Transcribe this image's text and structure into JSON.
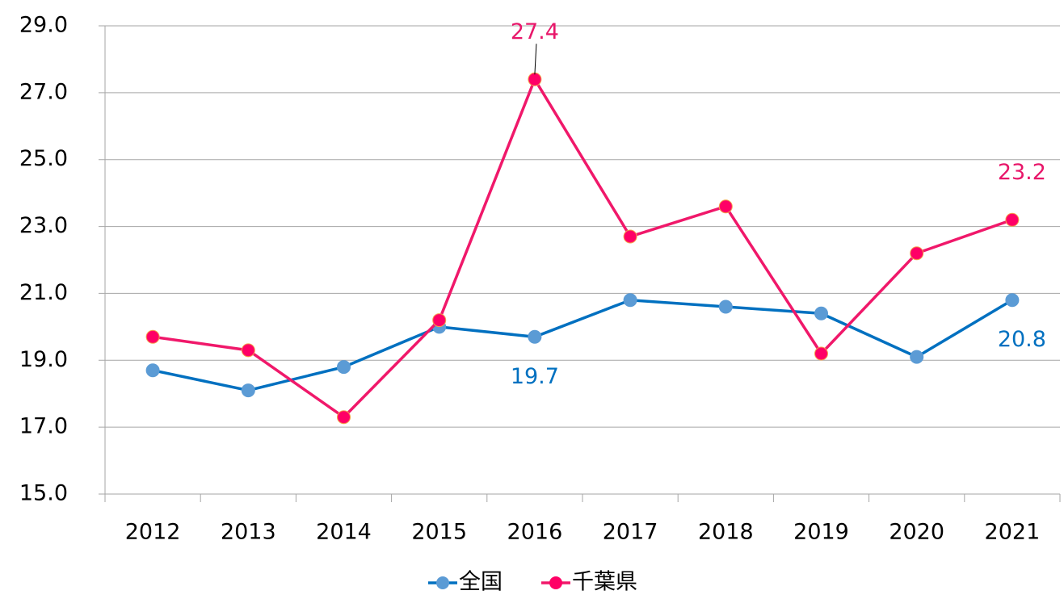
{
  "chart_data": {
    "type": "line",
    "categories": [
      "2012",
      "2013",
      "2014",
      "2015",
      "2016",
      "2017",
      "2018",
      "2019",
      "2020",
      "2021"
    ],
    "series": [
      {
        "name": "全国",
        "color": "#0070c0",
        "marker_color": "#5b9bd5",
        "label_color": "#0070c0",
        "values": [
          18.7,
          18.1,
          18.8,
          20.0,
          19.7,
          20.8,
          20.6,
          20.4,
          19.1,
          20.8
        ],
        "value_labels": [
          null,
          null,
          null,
          null,
          "19.7",
          null,
          null,
          null,
          null,
          "20.8"
        ]
      },
      {
        "name": "千葉県",
        "color": "#f0186a",
        "marker_color": "#ff0066",
        "label_color": "#e8176a",
        "values": [
          19.7,
          19.3,
          17.3,
          20.2,
          27.4,
          22.7,
          23.6,
          19.2,
          22.2,
          23.2
        ],
        "value_labels": [
          null,
          null,
          null,
          null,
          "27.4",
          null,
          null,
          null,
          null,
          "23.2"
        ]
      }
    ],
    "ylim": [
      15,
      29
    ],
    "yticks": [
      {
        "value": 15,
        "label": "15.0"
      },
      {
        "value": 17,
        "label": "17.0"
      },
      {
        "value": 19,
        "label": "19.0"
      },
      {
        "value": 21,
        "label": "21.0"
      },
      {
        "value": 23,
        "label": "23.0"
      },
      {
        "value": 25,
        "label": "25.0"
      },
      {
        "value": 27,
        "label": "27.0"
      },
      {
        "value": 29,
        "label": "29.0"
      }
    ],
    "grid": true,
    "legend": "bottom"
  }
}
